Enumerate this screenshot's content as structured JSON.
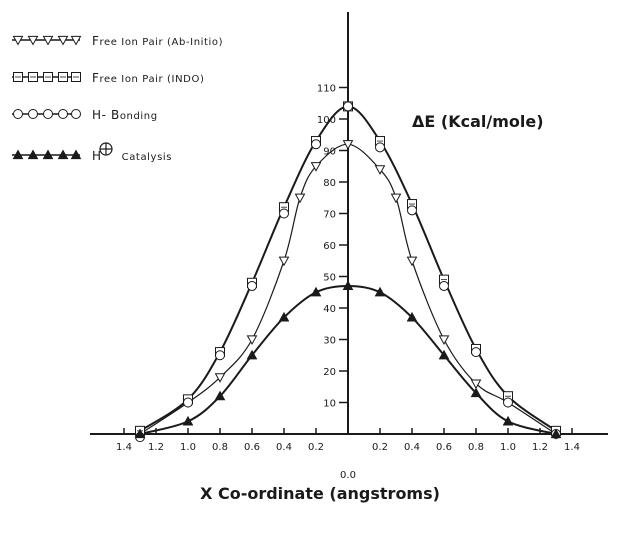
{
  "chart_data": {
    "type": "line",
    "ylabel": "ΔE (Kcal/mole)",
    "xlabel": "X Co-ordinate (angstroms)",
    "x_tick_labels_left": [
      "1.4",
      "1.2",
      "1.0",
      "0.8",
      "0.6",
      "0.4",
      "0.2"
    ],
    "x_tick_labels_right": [
      "0.2",
      "0.4",
      "0.6",
      "0.8",
      "1.0",
      "1.2",
      "1.4"
    ],
    "x_origin_label": "0.0",
    "y_ticks": [
      10,
      20,
      30,
      40,
      50,
      60,
      70,
      80,
      90,
      100,
      110
    ],
    "xlim": [
      -1.4,
      1.4
    ],
    "ylim": [
      0,
      115
    ],
    "legend_position": "top-left",
    "color": "#1a1a1a",
    "series": [
      {
        "name": "Free Ion Pair (Ab-Initio)",
        "marker": "triangle-down-open",
        "x": [
          -1.3,
          -1.0,
          -0.8,
          -0.6,
          -0.4,
          -0.3,
          -0.2,
          0.0,
          0.2,
          0.3,
          0.4,
          0.6,
          0.8,
          1.0,
          1.3
        ],
        "y": [
          0,
          10,
          18,
          30,
          55,
          75,
          85,
          92,
          84,
          75,
          55,
          30,
          16,
          10,
          0
        ]
      },
      {
        "name": "Free Ion Pair (INDO)",
        "marker": "square-open",
        "x": [
          -1.3,
          -1.0,
          -0.8,
          -0.6,
          -0.4,
          -0.2,
          0.0,
          0.2,
          0.4,
          0.6,
          0.8,
          1.0,
          1.3
        ],
        "y": [
          1,
          11,
          26,
          48,
          72,
          93,
          104,
          93,
          73,
          49,
          27,
          12,
          1
        ]
      },
      {
        "name": "H- Bonding",
        "marker": "circle-open",
        "x": [
          -1.3,
          -1.0,
          -0.8,
          -0.6,
          -0.4,
          -0.2,
          0.0,
          0.2,
          0.4,
          0.6,
          0.8,
          1.0,
          1.3
        ],
        "y": [
          -1,
          10,
          25,
          47,
          70,
          92,
          104,
          91,
          71,
          47,
          26,
          10,
          0
        ]
      },
      {
        "name": "H⊕ Catalysis",
        "marker": "triangle-up",
        "x": [
          -1.3,
          -1.0,
          -0.8,
          -0.6,
          -0.4,
          -0.2,
          0.0,
          0.2,
          0.4,
          0.6,
          0.8,
          1.0,
          1.3
        ],
        "y": [
          0,
          4,
          12,
          25,
          37,
          45,
          47,
          45,
          37,
          25,
          13,
          4,
          0
        ]
      }
    ]
  },
  "legend": {
    "items": [
      {
        "prefix": "F",
        "rest": "ree Ion Pair (Ab-Initio)"
      },
      {
        "prefix": "F",
        "rest": "ree Ion Pair (INDO)"
      },
      {
        "prefix": "H- B",
        "rest": "onding"
      },
      {
        "prefix": "H",
        "rest": "Catalysis"
      }
    ]
  }
}
